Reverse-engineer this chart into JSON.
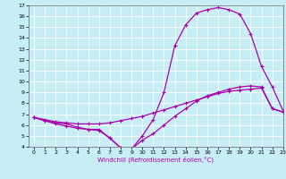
{
  "line1_x": [
    0,
    1,
    2,
    3,
    4,
    5,
    6,
    7,
    8,
    9,
    10,
    11,
    12,
    13,
    14,
    15,
    16,
    17,
    18,
    19,
    20,
    21,
    22,
    23
  ],
  "line1_y": [
    6.7,
    6.5,
    6.3,
    6.2,
    6.1,
    6.1,
    6.1,
    6.2,
    6.4,
    6.6,
    6.8,
    7.1,
    7.4,
    7.7,
    8.0,
    8.3,
    8.6,
    8.9,
    9.1,
    9.2,
    9.3,
    9.4,
    7.5,
    7.2
  ],
  "line2_x": [
    0,
    1,
    2,
    3,
    4,
    5,
    6,
    7,
    8,
    9,
    10,
    11,
    12,
    13,
    14,
    15,
    16,
    17,
    18,
    19,
    20,
    21,
    22,
    23
  ],
  "line2_y": [
    6.7,
    6.4,
    6.1,
    5.9,
    5.7,
    5.6,
    5.5,
    4.8,
    3.9,
    3.8,
    4.6,
    5.2,
    6.0,
    6.8,
    7.5,
    8.2,
    8.7,
    9.0,
    9.3,
    9.5,
    9.6,
    9.5,
    7.5,
    7.2
  ],
  "line3_x": [
    0,
    1,
    2,
    3,
    4,
    5,
    6,
    7,
    8,
    9,
    10,
    11,
    12,
    13,
    14,
    15,
    16,
    17,
    18,
    19,
    20,
    21,
    22,
    23
  ],
  "line3_y": [
    6.7,
    6.4,
    6.2,
    6.1,
    5.8,
    5.6,
    5.6,
    4.8,
    3.9,
    3.8,
    5.0,
    6.5,
    9.0,
    13.3,
    15.2,
    16.3,
    16.6,
    16.8,
    16.6,
    16.2,
    14.4,
    11.4,
    9.5,
    7.3
  ],
  "color": "#aa00aa",
  "bg_color": "#c8eef5",
  "grid_color": "#ffffff",
  "xlabel": "Windchill (Refroidissement éolien,°C)",
  "xlim": [
    -0.5,
    23
  ],
  "ylim": [
    4,
    17
  ],
  "yticks": [
    4,
    5,
    6,
    7,
    8,
    9,
    10,
    11,
    12,
    13,
    14,
    15,
    16,
    17
  ],
  "xticks": [
    0,
    1,
    2,
    3,
    4,
    5,
    6,
    7,
    8,
    9,
    10,
    11,
    12,
    13,
    14,
    15,
    16,
    17,
    18,
    19,
    20,
    21,
    22,
    23
  ],
  "marker": "+",
  "markersize": 3,
  "linewidth": 0.9
}
